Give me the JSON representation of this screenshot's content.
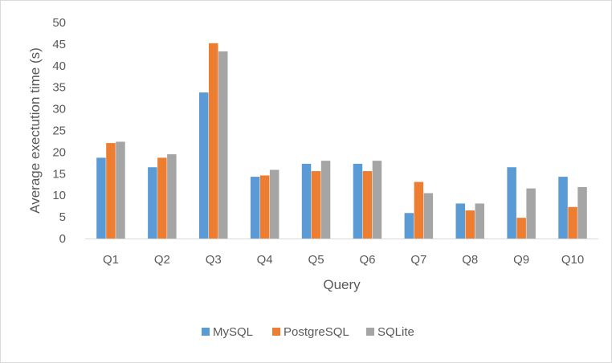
{
  "chart_data": {
    "type": "bar",
    "title": "",
    "xlabel": "Query",
    "ylabel": "Average exectution time (s)",
    "ylim": [
      0,
      50
    ],
    "yticks": [
      0,
      5,
      10,
      15,
      20,
      25,
      30,
      35,
      40,
      45,
      50
    ],
    "grid": false,
    "legend_position": "bottom",
    "categories": [
      "Q1",
      "Q2",
      "Q3",
      "Q4",
      "Q5",
      "Q6",
      "Q7",
      "Q8",
      "Q9",
      "Q10"
    ],
    "series": [
      {
        "name": "MySQL",
        "color": "#5b9bd5",
        "values": [
          18.7,
          16.5,
          33.8,
          14.3,
          17.3,
          17.3,
          5.9,
          8.1,
          16.5,
          14.3
        ]
      },
      {
        "name": "PostgreSQL",
        "color": "#ed7d31",
        "values": [
          22.1,
          18.7,
          45.2,
          14.6,
          15.6,
          15.6,
          13.1,
          6.5,
          4.8,
          7.3
        ]
      },
      {
        "name": "SQLite",
        "color": "#a5a5a5",
        "values": [
          22.4,
          19.5,
          43.3,
          15.9,
          18.0,
          18.0,
          10.5,
          8.1,
          11.6,
          11.9
        ]
      }
    ]
  }
}
